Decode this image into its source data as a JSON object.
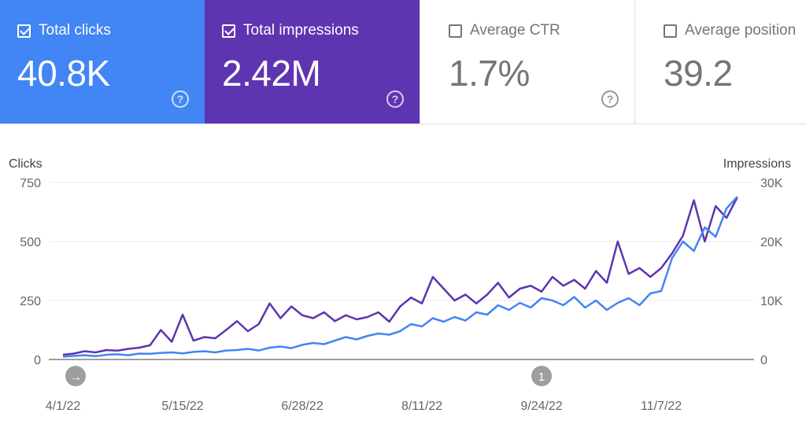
{
  "cards": [
    {
      "label": "Total clicks",
      "value": "40.8K",
      "checked": true,
      "color": "#4285f4"
    },
    {
      "label": "Total impressions",
      "value": "2.42M",
      "checked": true,
      "color": "#5e35b1"
    },
    {
      "label": "Average CTR",
      "value": "1.7%",
      "checked": false,
      "color": "#ffffff"
    },
    {
      "label": "Average position",
      "value": "39.2",
      "checked": false,
      "color": "#ffffff"
    }
  ],
  "chart_data": {
    "type": "line",
    "ylabel_left": "Clicks",
    "ylabel_right": "Impressions",
    "ylim_left": [
      0,
      750
    ],
    "ylim_right": [
      0,
      30000
    ],
    "yticks_left": [
      "0",
      "250",
      "500",
      "750"
    ],
    "yticks_right": [
      "0",
      "10K",
      "20K",
      "30K"
    ],
    "xticks": [
      "4/1/22",
      "5/15/22",
      "6/28/22",
      "8/11/22",
      "9/24/22",
      "11/7/22"
    ],
    "grid": true,
    "annotations": [
      {
        "date": "4/1/22",
        "icon": "arrow-right-icon"
      },
      {
        "date": "9/24/22",
        "label": "1"
      }
    ],
    "x": [
      "4/1/22",
      "4/5/22",
      "4/9/22",
      "4/13/22",
      "4/17/22",
      "4/21/22",
      "4/25/22",
      "4/29/22",
      "5/3/22",
      "5/7/22",
      "5/11/22",
      "5/15/22",
      "5/19/22",
      "5/23/22",
      "5/27/22",
      "5/31/22",
      "6/4/22",
      "6/8/22",
      "6/12/22",
      "6/16/22",
      "6/20/22",
      "6/24/22",
      "6/28/22",
      "7/2/22",
      "7/6/22",
      "7/10/22",
      "7/14/22",
      "7/18/22",
      "7/22/22",
      "7/26/22",
      "7/30/22",
      "8/3/22",
      "8/7/22",
      "8/11/22",
      "8/15/22",
      "8/19/22",
      "8/23/22",
      "8/27/22",
      "8/31/22",
      "9/4/22",
      "9/8/22",
      "9/12/22",
      "9/16/22",
      "9/20/22",
      "9/24/22",
      "9/28/22",
      "10/2/22",
      "10/6/22",
      "10/10/22",
      "10/14/22",
      "10/18/22",
      "10/22/22",
      "10/26/22",
      "10/30/22",
      "11/3/22",
      "11/7/22",
      "11/11/22",
      "11/15/22",
      "11/19/22",
      "11/23/22",
      "11/27/22",
      "12/1/22",
      "12/5/22"
    ],
    "series": [
      {
        "name": "Clicks",
        "axis": "left",
        "color": "#4285f4",
        "values": [
          12,
          15,
          18,
          14,
          20,
          22,
          18,
          25,
          24,
          28,
          30,
          26,
          32,
          35,
          30,
          38,
          40,
          45,
          38,
          50,
          55,
          48,
          62,
          70,
          65,
          80,
          95,
          85,
          100,
          110,
          105,
          120,
          150,
          140,
          175,
          160,
          180,
          165,
          200,
          190,
          230,
          210,
          240,
          220,
          260,
          250,
          230,
          265,
          220,
          250,
          210,
          240,
          260,
          230,
          280,
          290,
          430,
          500,
          460,
          560,
          520,
          640,
          690
        ]
      },
      {
        "name": "Impressions",
        "axis": "right",
        "color": "#5e35b1",
        "values": [
          800,
          1000,
          1400,
          1200,
          1600,
          1500,
          1800,
          2000,
          2400,
          5000,
          3000,
          7600,
          3200,
          3800,
          3600,
          5000,
          6500,
          4800,
          6000,
          9500,
          7000,
          9000,
          7500,
          7000,
          8000,
          6500,
          7500,
          6800,
          7200,
          8000,
          6400,
          9000,
          10500,
          9500,
          14000,
          12000,
          10000,
          11000,
          9500,
          11000,
          13000,
          10500,
          12000,
          12500,
          11500,
          14000,
          12500,
          13500,
          12000,
          15000,
          13000,
          20000,
          14500,
          15500,
          14000,
          15500,
          18000,
          21000,
          27000,
          20000,
          26000,
          24000,
          27500
        ]
      }
    ]
  }
}
